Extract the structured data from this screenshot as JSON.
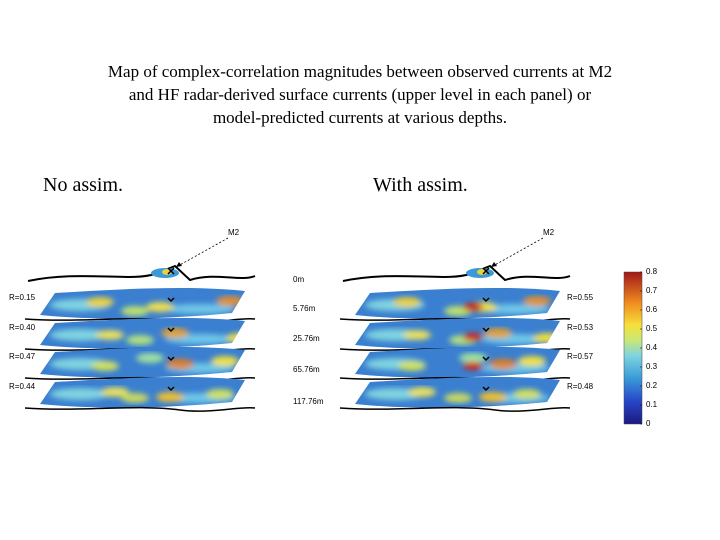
{
  "title_lines": [
    "Map of complex-correlation magnitudes between observed currents at M2",
    "and HF radar-derived surface currents (upper level in each panel) or",
    "model-predicted currents at various depths."
  ],
  "panels": [
    {
      "heading": "No assim.",
      "m2_label": "M2",
      "r_values": [
        "R=0.15",
        "R=0.40",
        "R=0.47",
        "R=0.44"
      ]
    },
    {
      "heading": "With assim.",
      "m2_label": "M2",
      "r_values": [
        "R=0.55",
        "R=0.53",
        "R=0.57",
        "R=0.48"
      ]
    }
  ],
  "depths": [
    "0m",
    "5.76m",
    "25.76m",
    "65.76m",
    "117.76m"
  ],
  "colorbar": {
    "range": [
      0,
      0.8
    ],
    "ticks": [
      0,
      0.1,
      0.2,
      0.3,
      0.4,
      0.5,
      0.6,
      0.7,
      0.8
    ]
  }
}
